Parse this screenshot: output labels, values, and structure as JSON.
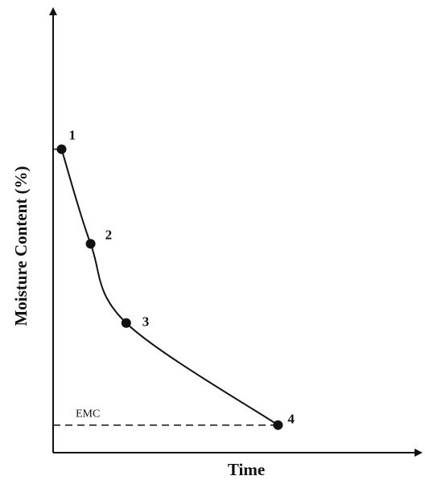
{
  "chart_data": {
    "type": "line",
    "title": "",
    "xlabel": "Time",
    "ylabel": "Moisture Content (%)",
    "grid": false,
    "legend": "none",
    "axis_ticks": false,
    "curve_color": "#111111",
    "points": [
      {
        "label": "1",
        "x": 0.045,
        "y": 1.0
      },
      {
        "label": "2",
        "x": 0.2,
        "y": 0.657
      },
      {
        "label": "3",
        "x": 0.39,
        "y": 0.37
      },
      {
        "label": "4",
        "x": 1.2,
        "y": 0.0
      }
    ],
    "annotations": [
      {
        "text": "EMC",
        "y": 0.0,
        "style": "dashed-horizontal"
      }
    ],
    "xlim": [
      0,
      1.95
    ],
    "ylim": [
      -0.1,
      1.5
    ]
  }
}
